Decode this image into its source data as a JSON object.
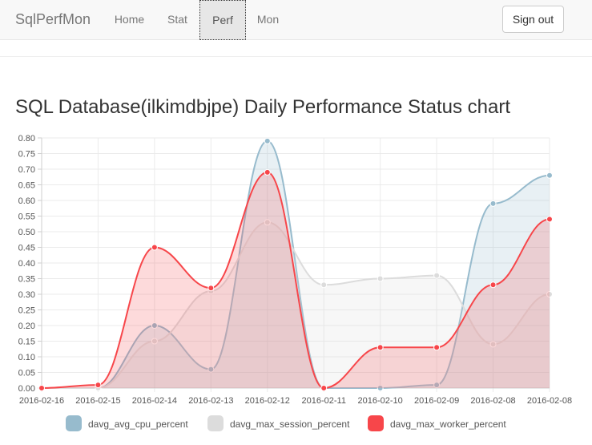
{
  "nav": {
    "brand": "SqlPerfMon",
    "items": [
      {
        "label": "Home",
        "active": false
      },
      {
        "label": "Stat",
        "active": false
      },
      {
        "label": "Perf",
        "active": true
      },
      {
        "label": "Mon",
        "active": false
      }
    ],
    "signout_label": "Sign out"
  },
  "page": {
    "title": "SQL Database(ilkimdbjpe) Daily Performance Status chart"
  },
  "chart_data": {
    "type": "area",
    "title": "",
    "xlabel": "",
    "ylabel": "",
    "categories": [
      "2016-02-16",
      "2016-02-15",
      "2016-02-14",
      "2016-02-13",
      "2016-02-12",
      "2016-02-11",
      "2016-02-10",
      "2016-02-09",
      "2016-02-08",
      "2016-02-08"
    ],
    "ylim": [
      0,
      0.8
    ],
    "yticks": [
      "0.00",
      "0.05",
      "0.10",
      "0.15",
      "0.20",
      "0.25",
      "0.30",
      "0.35",
      "0.40",
      "0.45",
      "0.50",
      "0.55",
      "0.60",
      "0.65",
      "0.70",
      "0.75",
      "0.80"
    ],
    "grid": true,
    "legend_position": "bottom",
    "series": [
      {
        "name": "davg_avg_cpu_percent",
        "color": "#97bbcd",
        "values": [
          0.0,
          0.0,
          0.2,
          0.06,
          0.79,
          0.0,
          0.0,
          0.01,
          0.59,
          0.68
        ]
      },
      {
        "name": "davg_max_session_percent",
        "color": "#dcdcdc",
        "values": [
          0.0,
          0.0,
          0.15,
          0.31,
          0.53,
          0.33,
          0.35,
          0.36,
          0.14,
          0.3
        ]
      },
      {
        "name": "davg_max_worker_percent",
        "color": "#f7464a",
        "values": [
          0.0,
          0.01,
          0.45,
          0.32,
          0.69,
          0.0,
          0.13,
          0.13,
          0.33,
          0.54
        ]
      }
    ]
  }
}
